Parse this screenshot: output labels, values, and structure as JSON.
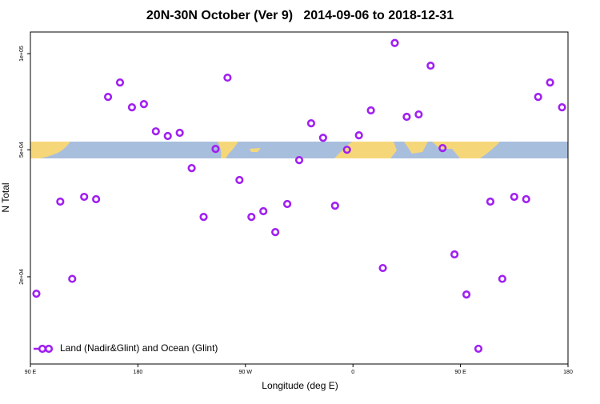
{
  "chart_data": {
    "type": "scatter",
    "title": "20N-30N October (Ver 9)   2014-09-06 to 2018-12-31",
    "x_label": "Longitude (deg E)",
    "y_label": "N Total",
    "log_y": true,
    "xlim": [
      90,
      540
    ],
    "xticks": [
      {
        "value": 90,
        "label": "90 E"
      },
      180,
      {
        "value": 270,
        "label": "90 W"
      },
      {
        "value": 360,
        "label": "0"
      },
      {
        "value": 450,
        "label": "90 E"
      },
      {
        "value": 540,
        "label": "180"
      }
    ],
    "ylim": [
      10660,
      116900
    ],
    "yticks": [
      {
        "value": 20000,
        "label": "2e+04"
      },
      {
        "value": 50000,
        "label": "5e+04"
      },
      {
        "value": 100000,
        "label": "1e+05"
      }
    ],
    "legend_position": "bottom-left",
    "series": [
      {
        "name": "Land (Nadir&Glint) and Ocean (Glint)",
        "color": "#a020f0",
        "x": [
          95,
          115,
          125,
          135,
          145,
          155,
          165,
          175,
          185,
          195,
          205,
          215,
          225,
          235,
          245,
          255,
          265,
          275,
          285,
          295,
          305,
          315,
          325,
          335,
          345,
          355,
          365,
          375,
          385,
          395,
          405,
          415,
          425,
          435,
          445,
          455,
          465,
          475,
          485,
          495,
          505,
          515,
          525,
          535
        ],
        "values": [
          17700,
          34400,
          19700,
          35600,
          35000,
          73200,
          81200,
          67900,
          69500,
          57100,
          55200,
          56500,
          43800,
          30800,
          50300,
          84100,
          40200,
          30800,
          32100,
          27600,
          33800,
          46400,
          60500,
          54500,
          33400,
          50000,
          55500,
          66400,
          21300,
          108000,
          63400,
          64500,
          91700,
          50600,
          23500,
          17600,
          11900,
          34400,
          19700,
          35600,
          35000,
          73200,
          81200,
          67900
        ]
      }
    ]
  }
}
